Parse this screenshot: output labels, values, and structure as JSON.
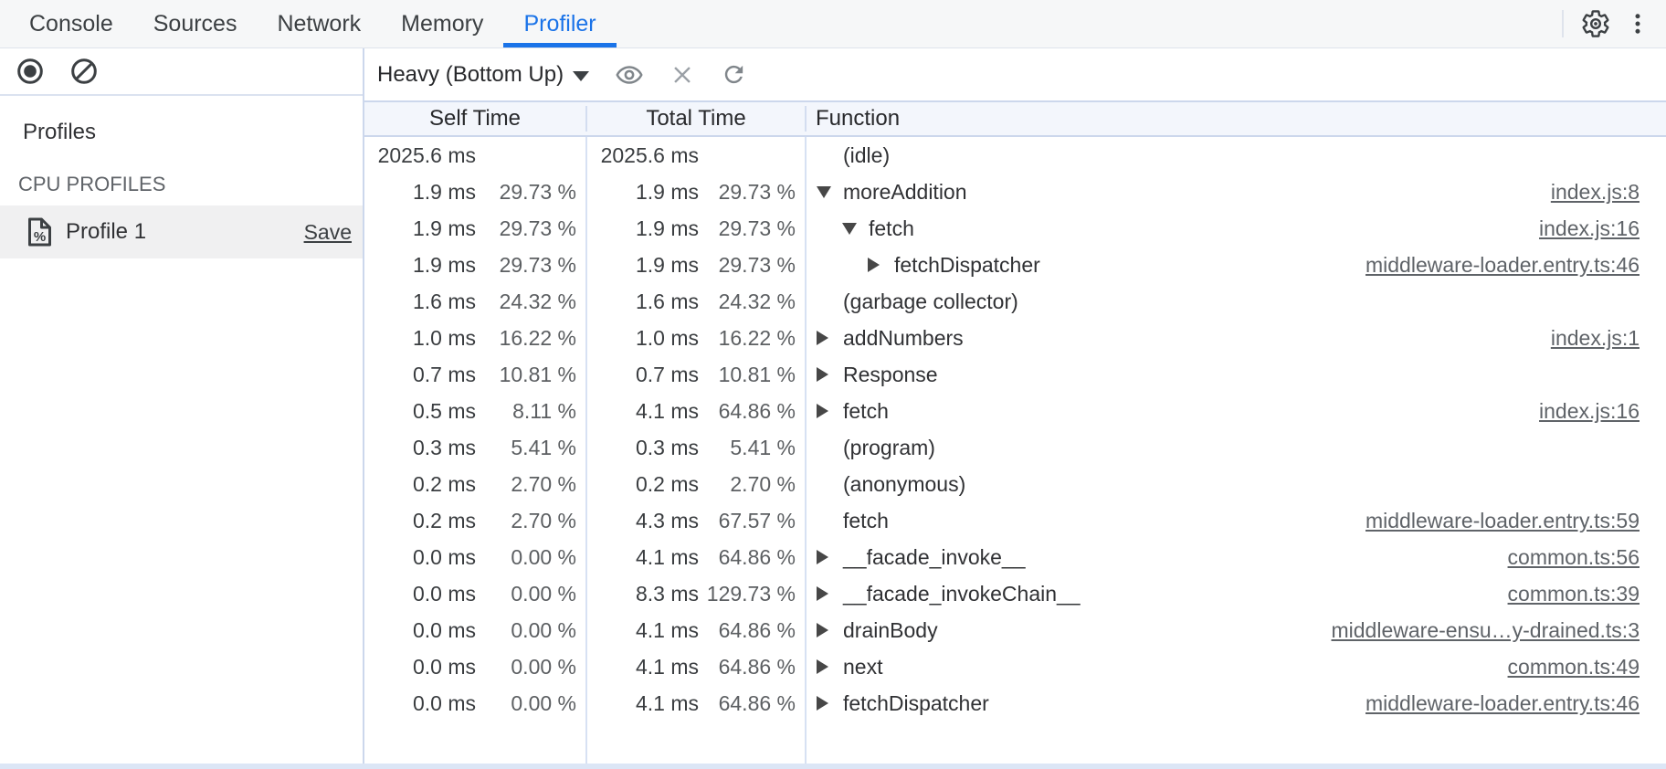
{
  "colors": {
    "accent": "#1a73e8",
    "toolbar_bg": "#f6f7f8",
    "grid_header_bg": "#f3f6fc",
    "grid_border": "#ccd7ec",
    "selected_row_bg": "#f0f0f1",
    "text_primary": "#303134",
    "text_secondary": "#5f6368"
  },
  "tabbar": {
    "tabs": [
      {
        "label": "Console",
        "active": false
      },
      {
        "label": "Sources",
        "active": false
      },
      {
        "label": "Network",
        "active": false
      },
      {
        "label": "Memory",
        "active": false
      },
      {
        "label": "Profiler",
        "active": true
      }
    ],
    "icons": [
      "gear-icon",
      "three-dot-menu-icon"
    ]
  },
  "toolbar": {
    "icons": [
      "record-icon",
      "clear-icon",
      "eye-icon",
      "close-icon",
      "refresh-icon"
    ],
    "view_mode": "Heavy (Bottom Up)"
  },
  "sidebar": {
    "title": "Profiles",
    "section_heading": "CPU PROFILES",
    "profiles": [
      {
        "name": "Profile 1",
        "action": "Save",
        "selected": true,
        "icon": "profile-document-percent-icon"
      }
    ]
  },
  "table": {
    "columns": [
      "Self Time",
      "Total Time",
      "Function"
    ],
    "rows": [
      {
        "self": "2025.6 ms",
        "self_pct": "",
        "total": "2025.6 ms",
        "total_pct": "",
        "fn": "(idle)",
        "level": 0,
        "arrow": "none",
        "link": ""
      },
      {
        "self": "1.9 ms",
        "self_pct": "29.73 %",
        "total": "1.9 ms",
        "total_pct": "29.73 %",
        "fn": "moreAddition",
        "level": 0,
        "arrow": "down",
        "link": "index.js:8"
      },
      {
        "self": "1.9 ms",
        "self_pct": "29.73 %",
        "total": "1.9 ms",
        "total_pct": "29.73 %",
        "fn": "fetch",
        "level": 1,
        "arrow": "down",
        "link": "index.js:16"
      },
      {
        "self": "1.9 ms",
        "self_pct": "29.73 %",
        "total": "1.9 ms",
        "total_pct": "29.73 %",
        "fn": "fetchDispatcher",
        "level": 2,
        "arrow": "right",
        "link": "middleware-loader.entry.ts:46"
      },
      {
        "self": "1.6 ms",
        "self_pct": "24.32 %",
        "total": "1.6 ms",
        "total_pct": "24.32 %",
        "fn": "(garbage collector)",
        "level": 0,
        "arrow": "none",
        "link": ""
      },
      {
        "self": "1.0 ms",
        "self_pct": "16.22 %",
        "total": "1.0 ms",
        "total_pct": "16.22 %",
        "fn": "addNumbers",
        "level": 0,
        "arrow": "right",
        "link": "index.js:1"
      },
      {
        "self": "0.7 ms",
        "self_pct": "10.81 %",
        "total": "0.7 ms",
        "total_pct": "10.81 %",
        "fn": "Response",
        "level": 0,
        "arrow": "right",
        "link": ""
      },
      {
        "self": "0.5 ms",
        "self_pct": "8.11 %",
        "total": "4.1 ms",
        "total_pct": "64.86 %",
        "fn": "fetch",
        "level": 0,
        "arrow": "right",
        "link": "index.js:16"
      },
      {
        "self": "0.3 ms",
        "self_pct": "5.41 %",
        "total": "0.3 ms",
        "total_pct": "5.41 %",
        "fn": "(program)",
        "level": 0,
        "arrow": "none",
        "link": ""
      },
      {
        "self": "0.2 ms",
        "self_pct": "2.70 %",
        "total": "0.2 ms",
        "total_pct": "2.70 %",
        "fn": "(anonymous)",
        "level": 0,
        "arrow": "none",
        "link": ""
      },
      {
        "self": "0.2 ms",
        "self_pct": "2.70 %",
        "total": "4.3 ms",
        "total_pct": "67.57 %",
        "fn": "fetch",
        "level": 0,
        "arrow": "none",
        "link": "middleware-loader.entry.ts:59"
      },
      {
        "self": "0.0 ms",
        "self_pct": "0.00 %",
        "total": "4.1 ms",
        "total_pct": "64.86 %",
        "fn": "__facade_invoke__",
        "level": 0,
        "arrow": "right",
        "link": "common.ts:56"
      },
      {
        "self": "0.0 ms",
        "self_pct": "0.00 %",
        "total": "8.3 ms",
        "total_pct": "129.73 %",
        "fn": "__facade_invokeChain__",
        "level": 0,
        "arrow": "right",
        "link": "common.ts:39"
      },
      {
        "self": "0.0 ms",
        "self_pct": "0.00 %",
        "total": "4.1 ms",
        "total_pct": "64.86 %",
        "fn": "drainBody",
        "level": 0,
        "arrow": "right",
        "link": "middleware-ensu…y-drained.ts:3"
      },
      {
        "self": "0.0 ms",
        "self_pct": "0.00 %",
        "total": "4.1 ms",
        "total_pct": "64.86 %",
        "fn": "next",
        "level": 0,
        "arrow": "right",
        "link": "common.ts:49"
      },
      {
        "self": "0.0 ms",
        "self_pct": "0.00 %",
        "total": "4.1 ms",
        "total_pct": "64.86 %",
        "fn": "fetchDispatcher",
        "level": 0,
        "arrow": "right",
        "link": "middleware-loader.entry.ts:46"
      }
    ]
  }
}
